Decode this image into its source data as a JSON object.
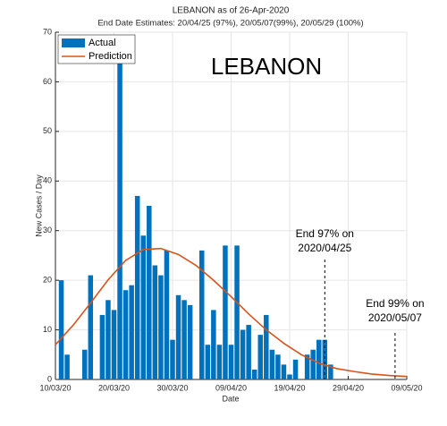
{
  "chart_data": {
    "type": "combo",
    "title": "LEBANON as of 26-Apr-2020",
    "subtitle": "End Date Estimates: 20/04/25 (97%), 20/05/07(99%), 20/05/29 (100%)",
    "label": "LEBANON",
    "x_label": "Date",
    "y_label": "New Cases / Day",
    "xlim": [
      "2020-03-10",
      "2020-05-09"
    ],
    "xticks": [
      {
        "value": "2020-03-10",
        "label": "10/03/20"
      },
      {
        "value": "2020-03-20",
        "label": "20/03/20"
      },
      {
        "value": "2020-03-30",
        "label": "30/03/20"
      },
      {
        "value": "2020-04-09",
        "label": "09/04/20"
      },
      {
        "value": "2020-04-19",
        "label": "19/04/20"
      },
      {
        "value": "2020-04-29",
        "label": "29/04/20"
      },
      {
        "value": "2020-05-09",
        "label": "09/05/20"
      }
    ],
    "ylim": [
      0,
      70
    ],
    "yticks": [
      0,
      10,
      20,
      30,
      40,
      50,
      60,
      70
    ],
    "grid": true,
    "legend": "top-left",
    "series": [
      {
        "name": "Actual",
        "type": "bar",
        "color": "#0072bd",
        "x": [
          "2020-03-11",
          "2020-03-12",
          "2020-03-13",
          "2020-03-14",
          "2020-03-15",
          "2020-03-16",
          "2020-03-17",
          "2020-03-18",
          "2020-03-19",
          "2020-03-20",
          "2020-03-21",
          "2020-03-22",
          "2020-03-23",
          "2020-03-24",
          "2020-03-25",
          "2020-03-26",
          "2020-03-27",
          "2020-03-28",
          "2020-03-29",
          "2020-03-30",
          "2020-03-31",
          "2020-04-01",
          "2020-04-02",
          "2020-04-03",
          "2020-04-04",
          "2020-04-05",
          "2020-04-06",
          "2020-04-07",
          "2020-04-08",
          "2020-04-09",
          "2020-04-10",
          "2020-04-11",
          "2020-04-12",
          "2020-04-13",
          "2020-04-14",
          "2020-04-15",
          "2020-04-16",
          "2020-04-17",
          "2020-04-18",
          "2020-04-19",
          "2020-04-20",
          "2020-04-21",
          "2020-04-22",
          "2020-04-23",
          "2020-04-24",
          "2020-04-25",
          "2020-04-26"
        ],
        "values": [
          20,
          5,
          0,
          0,
          6,
          21,
          0,
          13,
          16,
          14,
          64,
          18,
          19,
          37,
          29,
          35,
          23,
          21,
          26,
          8,
          17,
          16,
          15,
          0,
          26,
          7,
          14,
          7,
          27,
          7,
          27,
          10,
          11,
          2,
          9,
          13,
          6,
          5,
          3,
          1,
          4,
          0,
          5,
          6,
          8,
          8,
          3
        ]
      },
      {
        "name": "Prediction",
        "type": "line",
        "color": "#d95319",
        "x": [
          "2020-03-10",
          "2020-03-13",
          "2020-03-16",
          "2020-03-19",
          "2020-03-22",
          "2020-03-25",
          "2020-03-28",
          "2020-03-31",
          "2020-04-03",
          "2020-04-06",
          "2020-04-09",
          "2020-04-12",
          "2020-04-15",
          "2020-04-18",
          "2020-04-21",
          "2020-04-24",
          "2020-04-27",
          "2020-04-30",
          "2020-05-03",
          "2020-05-06",
          "2020-05-09"
        ],
        "values": [
          7,
          10.9,
          15.4,
          20.1,
          24,
          26.2,
          26.4,
          25.2,
          23,
          20,
          16.7,
          13.2,
          10,
          7.3,
          5,
          3.3,
          2.2,
          1.6,
          1.1,
          0.8,
          0.6
        ]
      }
    ],
    "annotations": [
      {
        "text": [
          "End 97% on",
          "2020/04/25"
        ],
        "x": "2020-04-25"
      },
      {
        "text": [
          "End 99% on",
          "2020/05/07"
        ],
        "x": "2020-05-07"
      }
    ]
  }
}
